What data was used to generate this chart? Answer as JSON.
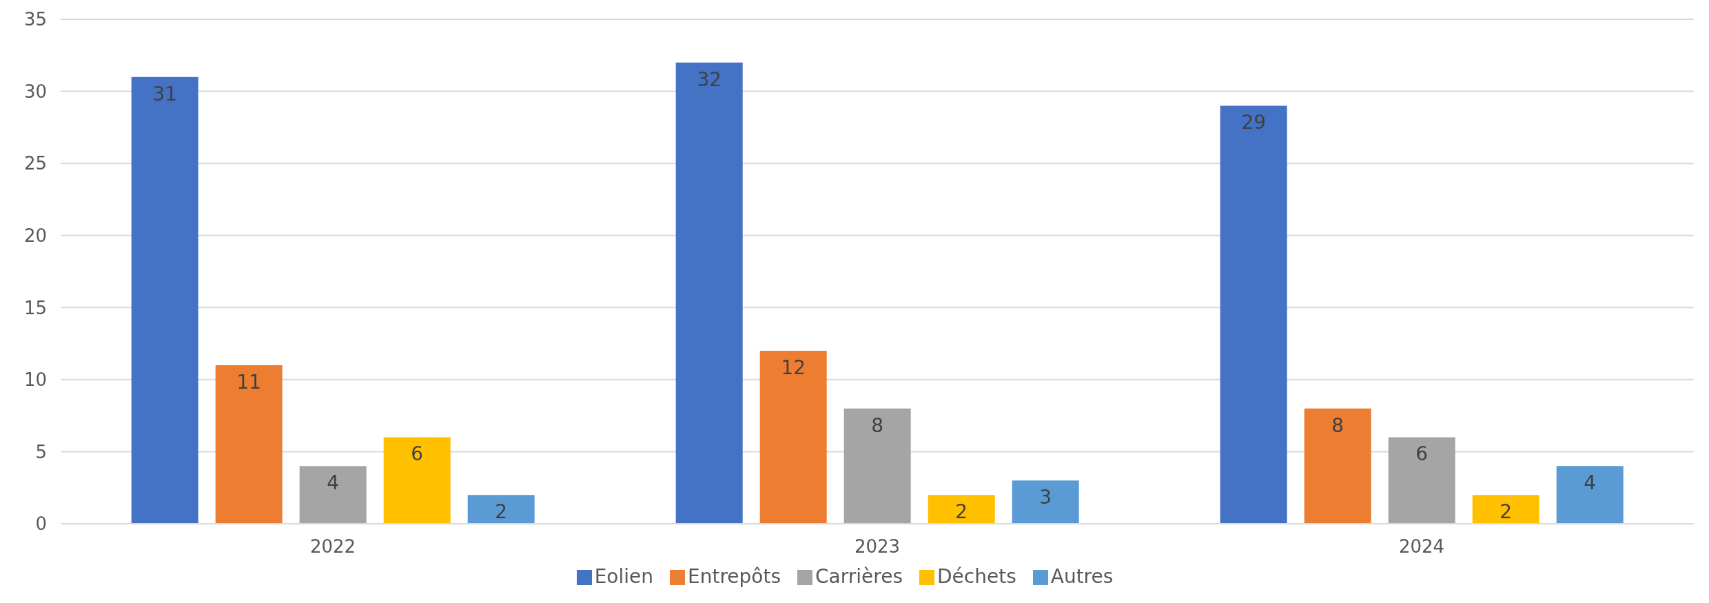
{
  "chart_data": {
    "type": "bar",
    "categories": [
      "2022",
      "2023",
      "2024"
    ],
    "series": [
      {
        "name": "Eolien",
        "color": "#4472c4",
        "values": [
          31,
          32,
          29
        ]
      },
      {
        "name": "Entrepôts",
        "color": "#ed7d31",
        "values": [
          11,
          12,
          8
        ]
      },
      {
        "name": "Carrières",
        "color": "#a5a5a5",
        "values": [
          4,
          8,
          6
        ]
      },
      {
        "name": "Déchets",
        "color": "#ffc000",
        "values": [
          6,
          2,
          2
        ]
      },
      {
        "name": "Autres",
        "color": "#5b9bd5",
        "values": [
          2,
          3,
          4
        ]
      }
    ],
    "ylim": [
      0,
      35
    ],
    "yticks": [
      0,
      5,
      10,
      15,
      20,
      25,
      30,
      35
    ],
    "grid": "y",
    "legend": "bottom",
    "data_labels": true
  }
}
